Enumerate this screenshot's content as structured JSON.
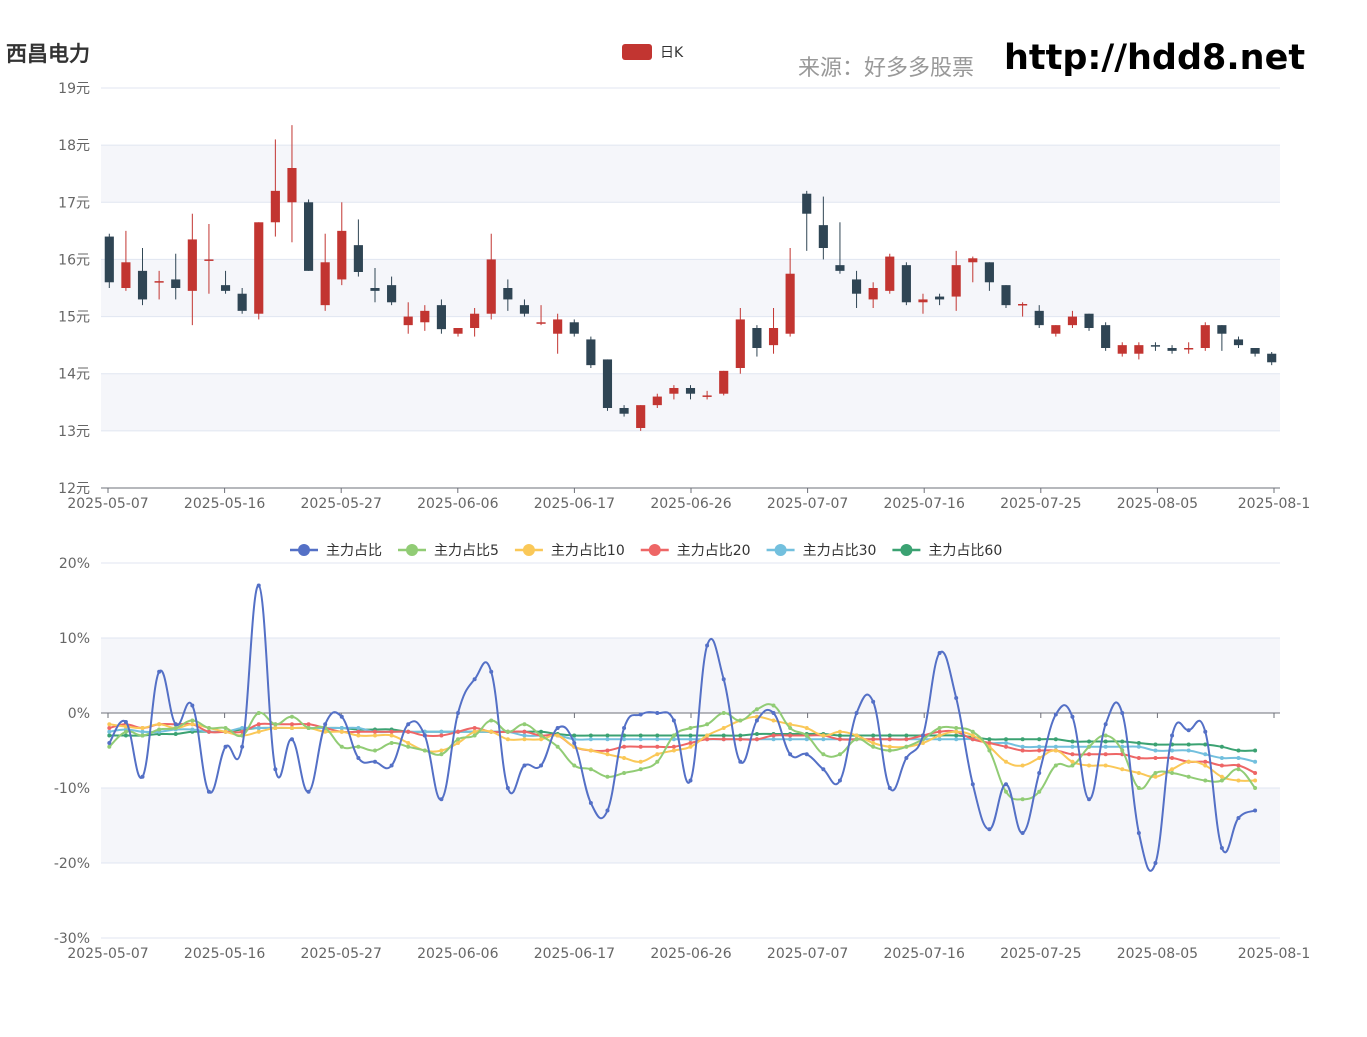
{
  "header": {
    "title": "西昌电力",
    "source": "来源：好多多股票",
    "url": "http://hdd8.net"
  },
  "colors": {
    "up": "#c23531",
    "down": "#2f4554",
    "series": [
      "#5470c6",
      "#91cc75",
      "#fac858",
      "#ee6666",
      "#73c0de",
      "#3ba272"
    ],
    "band": "#f5f6fa",
    "grid": "#e0e6f1",
    "axis": "#6e7079"
  },
  "chart_data": [
    {
      "type": "candlestick",
      "legend": [
        "日K"
      ],
      "ylim": [
        12,
        19
      ],
      "ytick_labels": [
        "12元",
        "13元",
        "14元",
        "15元",
        "16元",
        "17元",
        "18元",
        "19元"
      ],
      "xtick_labels": [
        "2025-05-07",
        "2025-05-16",
        "2025-05-27",
        "2025-06-06",
        "2025-06-17",
        "2025-06-26",
        "2025-07-07",
        "2025-07-16",
        "2025-07-25",
        "2025-08-05",
        "2025-08-1"
      ],
      "candles": [
        [
          16.4,
          15.6,
          15.5,
          16.45
        ],
        [
          15.5,
          15.95,
          15.45,
          16.5
        ],
        [
          15.8,
          15.3,
          15.2,
          16.2
        ],
        [
          15.6,
          15.62,
          15.3,
          15.8
        ],
        [
          15.65,
          15.5,
          15.3,
          16.1
        ],
        [
          15.45,
          16.35,
          14.85,
          16.8
        ],
        [
          16.0,
          16.0,
          15.4,
          16.62
        ],
        [
          15.55,
          15.45,
          15.4,
          15.8
        ],
        [
          15.4,
          15.1,
          15.05,
          15.5
        ],
        [
          15.05,
          16.65,
          14.95,
          16.65
        ],
        [
          16.65,
          17.2,
          16.4,
          18.1
        ],
        [
          17.0,
          17.6,
          16.3,
          18.35
        ],
        [
          17.0,
          15.8,
          15.8,
          17.05
        ],
        [
          15.2,
          15.95,
          15.1,
          16.45
        ],
        [
          15.65,
          16.5,
          15.55,
          17.0
        ],
        [
          16.25,
          15.78,
          15.7,
          16.7
        ],
        [
          15.5,
          15.45,
          15.25,
          15.85
        ],
        [
          15.55,
          15.25,
          15.2,
          15.7
        ],
        [
          14.85,
          15.0,
          14.7,
          15.25
        ],
        [
          14.9,
          15.1,
          14.75,
          15.2
        ],
        [
          15.2,
          14.78,
          14.7,
          15.3
        ],
        [
          14.7,
          14.8,
          14.65,
          14.8
        ],
        [
          14.8,
          15.05,
          14.65,
          15.15
        ],
        [
          15.05,
          16.0,
          14.95,
          16.45
        ],
        [
          15.5,
          15.3,
          15.1,
          15.65
        ],
        [
          15.2,
          15.05,
          15.0,
          15.3
        ],
        [
          14.9,
          14.9,
          14.85,
          15.2
        ],
        [
          14.7,
          14.95,
          14.35,
          15.05
        ],
        [
          14.9,
          14.7,
          14.65,
          14.95
        ],
        [
          14.6,
          14.15,
          14.1,
          14.65
        ],
        [
          14.25,
          13.4,
          13.35,
          14.25
        ],
        [
          13.4,
          13.3,
          13.25,
          13.45
        ],
        [
          13.05,
          13.45,
          13.0,
          13.45
        ],
        [
          13.45,
          13.6,
          13.4,
          13.65
        ],
        [
          13.65,
          13.75,
          13.55,
          13.8
        ],
        [
          13.75,
          13.65,
          13.55,
          13.8
        ],
        [
          13.6,
          13.62,
          13.55,
          13.7
        ],
        [
          13.65,
          14.05,
          13.62,
          14.05
        ],
        [
          14.1,
          14.95,
          14.0,
          15.15
        ],
        [
          14.8,
          14.45,
          14.3,
          14.85
        ],
        [
          14.5,
          14.8,
          14.35,
          15.15
        ],
        [
          14.7,
          15.75,
          14.65,
          16.2
        ],
        [
          17.15,
          16.8,
          16.15,
          17.2
        ],
        [
          16.6,
          16.2,
          16.0,
          17.1
        ],
        [
          15.9,
          15.8,
          15.75,
          16.65
        ],
        [
          15.65,
          15.4,
          15.15,
          15.8
        ],
        [
          15.3,
          15.5,
          15.15,
          15.6
        ],
        [
          15.45,
          16.05,
          15.4,
          16.1
        ],
        [
          15.9,
          15.25,
          15.2,
          15.95
        ],
        [
          15.25,
          15.3,
          15.05,
          15.4
        ],
        [
          15.35,
          15.3,
          15.2,
          15.4
        ],
        [
          15.35,
          15.9,
          15.1,
          16.15
        ],
        [
          15.95,
          16.02,
          15.6,
          16.05
        ],
        [
          15.95,
          15.6,
          15.45,
          15.95
        ],
        [
          15.55,
          15.2,
          15.15,
          15.55
        ],
        [
          15.2,
          15.22,
          15.0,
          15.25
        ],
        [
          15.1,
          14.85,
          14.8,
          15.2
        ],
        [
          14.7,
          14.85,
          14.65,
          14.85
        ],
        [
          14.85,
          15.0,
          14.8,
          15.1
        ],
        [
          15.05,
          14.8,
          14.75,
          15.05
        ],
        [
          14.85,
          14.45,
          14.4,
          14.9
        ],
        [
          14.35,
          14.5,
          14.3,
          14.55
        ],
        [
          14.35,
          14.5,
          14.25,
          14.55
        ],
        [
          14.5,
          14.48,
          14.4,
          14.55
        ],
        [
          14.45,
          14.4,
          14.35,
          14.5
        ],
        [
          14.45,
          14.45,
          14.35,
          14.55
        ],
        [
          14.45,
          14.85,
          14.4,
          14.9
        ],
        [
          14.85,
          14.7,
          14.4,
          14.85
        ],
        [
          14.6,
          14.5,
          14.45,
          14.65
        ],
        [
          14.45,
          14.35,
          14.3,
          14.45
        ],
        [
          14.35,
          14.2,
          14.15,
          14.38
        ]
      ]
    },
    {
      "type": "line",
      "ylim": [
        -30,
        20
      ],
      "ytick_labels": [
        "-30%",
        "-20%",
        "-10%",
        "0%",
        "10%",
        "20%"
      ],
      "xtick_labels": [
        "2025-05-07",
        "2025-05-16",
        "2025-05-27",
        "2025-06-06",
        "2025-06-17",
        "2025-06-26",
        "2025-07-07",
        "2025-07-16",
        "2025-07-25",
        "2025-08-05",
        "2025-08-1"
      ],
      "series": [
        {
          "name": "主力占比",
          "values": [
            -4.0,
            -1.2,
            -8.5,
            5.5,
            -1.5,
            1.0,
            -10.5,
            -4.5,
            -4.5,
            17.0,
            -7.5,
            -3.5,
            -10.5,
            -1.5,
            -0.5,
            -6.0,
            -6.5,
            -7.0,
            -1.5,
            -3.0,
            -11.5,
            0.0,
            4.5,
            5.5,
            -10.0,
            -7.0,
            -7.0,
            -2.0,
            -4.0,
            -12.0,
            -13.0,
            -2.0,
            -0.2,
            0.0,
            -1.0,
            -9.0,
            9.0,
            4.5,
            -6.5,
            -1.0,
            0.0,
            -5.5,
            -5.5,
            -7.5,
            -9.0,
            0.0,
            1.5,
            -10.0,
            -6.0,
            -3.0,
            8.0,
            2.0,
            -9.5,
            -15.5,
            -9.5,
            -16.0,
            -8.0,
            -0.2,
            -0.5,
            -11.5,
            -1.5,
            0.0,
            -16.0,
            -20.0,
            -3.0,
            -2.3,
            -2.5,
            -18.0,
            -14.0,
            -13.0
          ]
        },
        {
          "name": "主力占比5",
          "values": [
            -4.5,
            -2.5,
            -3.0,
            -2.2,
            -2.0,
            -1.0,
            -2.0,
            -2.0,
            -3.0,
            0.0,
            -1.5,
            -0.5,
            -2.0,
            -2.0,
            -4.5,
            -4.5,
            -5.0,
            -4.0,
            -4.5,
            -5.0,
            -5.5,
            -3.5,
            -3.0,
            -1.0,
            -2.5,
            -1.5,
            -3.0,
            -4.5,
            -7.0,
            -7.5,
            -8.5,
            -8.0,
            -7.5,
            -6.5,
            -3.0,
            -2.0,
            -1.5,
            0.0,
            -1.0,
            0.5,
            1.0,
            -2.0,
            -3.0,
            -5.5,
            -5.5,
            -3.5,
            -4.5,
            -5.0,
            -4.5,
            -3.5,
            -2.0,
            -2.0,
            -2.5,
            -5.0,
            -10.5,
            -11.5,
            -10.5,
            -7.0,
            -7.0,
            -4.5,
            -3.0,
            -5.0,
            -10.0,
            -8.0,
            -8.0,
            -8.5,
            -9.0,
            -9.0,
            -7.5,
            -10.0
          ]
        },
        {
          "name": "主力占比10",
          "values": [
            -1.5,
            -1.8,
            -2.0,
            -1.5,
            -2.0,
            -1.5,
            -2.0,
            -2.5,
            -3.0,
            -2.5,
            -2.0,
            -2.0,
            -2.0,
            -2.5,
            -2.5,
            -3.0,
            -3.0,
            -3.0,
            -4.0,
            -5.0,
            -5.0,
            -4.0,
            -2.5,
            -2.5,
            -3.5,
            -3.5,
            -3.5,
            -3.0,
            -4.5,
            -5.0,
            -5.5,
            -6.0,
            -6.5,
            -5.5,
            -5.0,
            -4.5,
            -3.0,
            -2.0,
            -1.0,
            -0.5,
            -1.0,
            -1.5,
            -2.0,
            -3.0,
            -2.5,
            -3.0,
            -4.0,
            -4.5,
            -4.5,
            -4.0,
            -3.0,
            -2.5,
            -3.0,
            -4.5,
            -6.5,
            -7.0,
            -6.0,
            -5.0,
            -6.5,
            -7.0,
            -7.0,
            -7.5,
            -8.0,
            -8.5,
            -7.5,
            -6.5,
            -7.0,
            -8.5,
            -9.0,
            -9.0
          ]
        },
        {
          "name": "主力占比20",
          "values": [
            -2.0,
            -1.5,
            -2.0,
            -1.5,
            -1.5,
            -1.5,
            -2.5,
            -2.5,
            -2.5,
            -1.5,
            -1.5,
            -1.5,
            -1.5,
            -2.0,
            -2.5,
            -2.5,
            -2.5,
            -2.5,
            -2.5,
            -3.0,
            -3.0,
            -2.5,
            -2.0,
            -2.5,
            -2.5,
            -2.5,
            -3.0,
            -3.0,
            -4.5,
            -5.0,
            -5.0,
            -4.5,
            -4.5,
            -4.5,
            -4.5,
            -4.0,
            -3.5,
            -3.5,
            -3.5,
            -3.5,
            -3.0,
            -3.0,
            -3.0,
            -3.0,
            -3.5,
            -3.5,
            -3.5,
            -3.5,
            -3.5,
            -3.0,
            -2.5,
            -2.5,
            -3.5,
            -4.0,
            -4.5,
            -5.0,
            -5.0,
            -5.0,
            -5.5,
            -5.5,
            -5.5,
            -5.5,
            -6.0,
            -6.0,
            -6.0,
            -6.5,
            -6.5,
            -7.0,
            -7.0,
            -8.0
          ]
        },
        {
          "name": "主力占比30",
          "values": [
            -2.5,
            -2.2,
            -2.5,
            -2.5,
            -2.2,
            -2.2,
            -2.5,
            -2.5,
            -2.0,
            -2.0,
            -2.0,
            -2.0,
            -2.0,
            -2.0,
            -2.0,
            -2.0,
            -2.5,
            -2.5,
            -2.5,
            -2.5,
            -2.5,
            -2.5,
            -2.5,
            -2.5,
            -2.5,
            -3.0,
            -3.0,
            -3.0,
            -3.5,
            -3.5,
            -3.5,
            -3.5,
            -3.5,
            -3.5,
            -3.5,
            -3.5,
            -3.5,
            -3.5,
            -3.5,
            -3.5,
            -3.5,
            -3.5,
            -3.5,
            -3.5,
            -3.5,
            -3.5,
            -3.5,
            -3.5,
            -3.5,
            -3.5,
            -3.5,
            -3.5,
            -3.5,
            -4.0,
            -4.0,
            -4.5,
            -4.5,
            -4.5,
            -4.5,
            -4.5,
            -4.5,
            -4.5,
            -4.5,
            -5.0,
            -5.0,
            -5.0,
            -5.5,
            -6.0,
            -6.0,
            -6.5
          ]
        },
        {
          "name": "主力占比60",
          "values": [
            -3.0,
            -3.0,
            -3.0,
            -2.8,
            -2.8,
            -2.5,
            -2.5,
            -2.5,
            -2.2,
            -2.0,
            -2.0,
            -2.0,
            -2.0,
            -2.0,
            -2.0,
            -2.2,
            -2.2,
            -2.2,
            -2.5,
            -2.5,
            -2.5,
            -2.5,
            -2.5,
            -2.5,
            -2.5,
            -2.5,
            -2.5,
            -2.8,
            -3.0,
            -3.0,
            -3.0,
            -3.0,
            -3.0,
            -3.0,
            -3.0,
            -3.0,
            -3.0,
            -3.0,
            -3.0,
            -2.8,
            -2.8,
            -2.8,
            -2.8,
            -2.8,
            -3.0,
            -3.0,
            -3.0,
            -3.0,
            -3.0,
            -3.0,
            -3.0,
            -3.0,
            -3.2,
            -3.5,
            -3.5,
            -3.5,
            -3.5,
            -3.5,
            -3.8,
            -3.8,
            -3.8,
            -3.8,
            -4.0,
            -4.2,
            -4.2,
            -4.2,
            -4.2,
            -4.5,
            -5.0,
            -5.0
          ]
        }
      ]
    }
  ]
}
